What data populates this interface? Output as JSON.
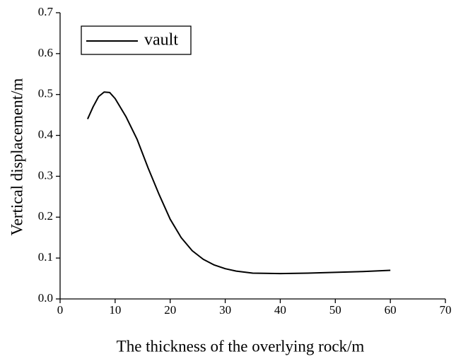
{
  "chart_data": {
    "type": "line",
    "x_label": "The thickness of the overlying rock/m",
    "y_label": "Vertical displacement/m",
    "xlim": [
      0,
      70
    ],
    "xticks": [
      0,
      10,
      20,
      30,
      40,
      50,
      60,
      70
    ],
    "ylim": [
      0,
      0.7
    ],
    "yticks": [
      {
        "value": 0,
        "label": "0.0"
      },
      0.1,
      0.2,
      0.3,
      0.4,
      0.5,
      0.6,
      0.7
    ],
    "legend": "upper left",
    "series": [
      {
        "name": "vault",
        "color": "#000000",
        "x": [
          5,
          6,
          7,
          8,
          9,
          10,
          12,
          14,
          16,
          18,
          20,
          22,
          24,
          26,
          28,
          30,
          32,
          35,
          40,
          45,
          50,
          55,
          60
        ],
        "values": [
          0.44,
          0.47,
          0.495,
          0.506,
          0.505,
          0.49,
          0.445,
          0.39,
          0.32,
          0.255,
          0.195,
          0.15,
          0.118,
          0.097,
          0.083,
          0.074,
          0.068,
          0.063,
          0.062,
          0.063,
          0.065,
          0.067,
          0.07
        ]
      }
    ]
  }
}
